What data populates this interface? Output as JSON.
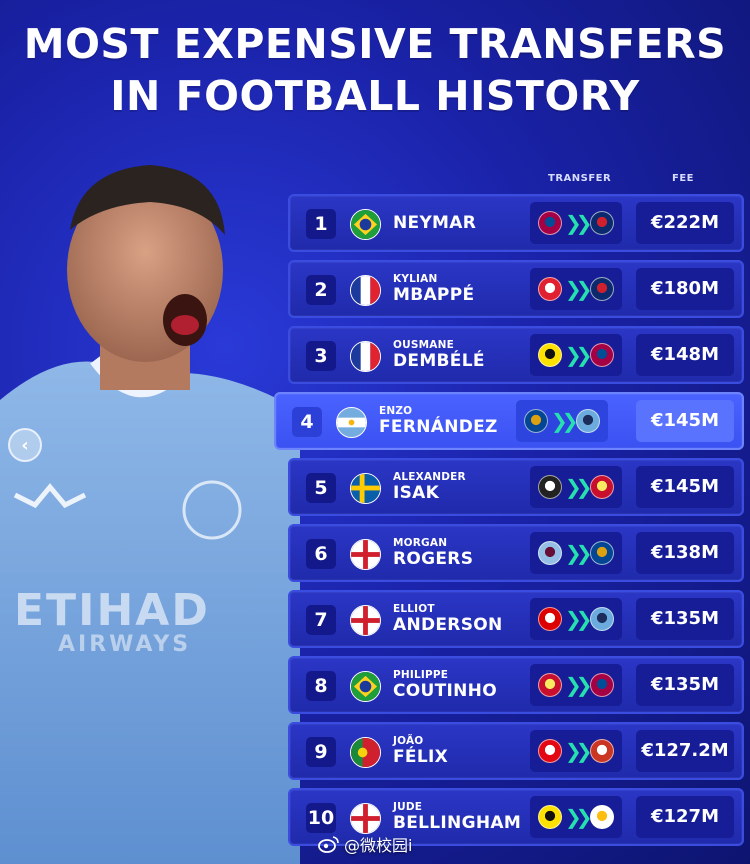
{
  "title": {
    "line1": "MOST EXPENSIVE TRANSFERS",
    "line2": "IN FOOTBALL HISTORY"
  },
  "columns": {
    "transfer": "TRANSFER",
    "fee": "FEE"
  },
  "player_jersey": {
    "sponsor": "ETIHAD",
    "sponsor_sub": "AIRWAYS"
  },
  "nav": {
    "prev_glyph": "‹"
  },
  "rows": [
    {
      "rank": "1",
      "first": "",
      "last": "NEYMAR",
      "fee": "€222M",
      "flag": "brazil",
      "from_icon": "barcelona-crest-icon",
      "to_icon": "psg-crest-icon",
      "highlighted": false
    },
    {
      "rank": "2",
      "first": "KYLIAN",
      "last": "MBAPPÉ",
      "fee": "€180M",
      "flag": "france",
      "from_icon": "monaco-crest-icon",
      "to_icon": "psg-crest-icon",
      "highlighted": false
    },
    {
      "rank": "3",
      "first": "OUSMANE",
      "last": "DEMBÉLÉ",
      "fee": "€148M",
      "flag": "france",
      "from_icon": "dortmund-crest-icon",
      "to_icon": "barcelona-crest-icon",
      "highlighted": false
    },
    {
      "rank": "4",
      "first": "ENZO",
      "last": "FERNÁNDEZ",
      "fee": "€145M",
      "flag": "argentina",
      "from_icon": "chelsea-crest-icon",
      "to_icon": "man-city-crest-icon",
      "highlighted": true
    },
    {
      "rank": "5",
      "first": "ALEXANDER",
      "last": "ISAK",
      "fee": "€145M",
      "flag": "sweden",
      "from_icon": "newcastle-crest-icon",
      "to_icon": "liverpool-crest-icon",
      "highlighted": false
    },
    {
      "rank": "6",
      "first": "MORGAN",
      "last": "ROGERS",
      "fee": "€138M",
      "flag": "england",
      "from_icon": "aston-villa-crest-icon",
      "to_icon": "chelsea-crest-icon",
      "highlighted": false
    },
    {
      "rank": "7",
      "first": "ELLIOT",
      "last": "ANDERSON",
      "fee": "€135M",
      "flag": "england",
      "from_icon": "nottingham-forest-crest-icon",
      "to_icon": "man-city-crest-icon",
      "highlighted": false
    },
    {
      "rank": "8",
      "first": "PHILIPPE",
      "last": "COUTINHO",
      "fee": "€135M",
      "flag": "brazil",
      "from_icon": "liverpool-crest-icon",
      "to_icon": "barcelona-crest-icon",
      "highlighted": false
    },
    {
      "rank": "9",
      "first": "JOÃO",
      "last": "FÉLIX",
      "fee": "€127.2M",
      "flag": "portugal",
      "from_icon": "benfica-crest-icon",
      "to_icon": "atletico-crest-icon",
      "highlighted": false
    },
    {
      "rank": "10",
      "first": "JUDE",
      "last": "BELLINGHAM",
      "fee": "€127M",
      "flag": "england",
      "from_icon": "dortmund-crest-icon",
      "to_icon": "real-madrid-crest-icon",
      "highlighted": false
    }
  ],
  "arrows_glyph": "❯❯",
  "watermark": {
    "text": "@微校园i"
  },
  "colors": {
    "background": "#1a22a8",
    "row": "#2b36c6",
    "highlight": "#4a62ff",
    "accent_arrows": "#26e0b0"
  }
}
